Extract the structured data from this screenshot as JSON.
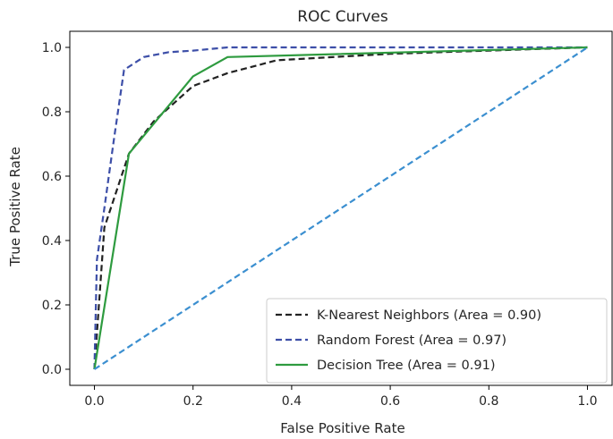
{
  "chart_data": {
    "type": "line",
    "title": "ROC Curves",
    "xlabel": "False Positive Rate",
    "ylabel": "True Positive Rate",
    "xlim": [
      -0.05,
      1.05
    ],
    "ylim": [
      -0.05,
      1.05
    ],
    "xticks": [
      0.0,
      0.2,
      0.4,
      0.6,
      0.8,
      1.0
    ],
    "yticks": [
      0.0,
      0.2,
      0.4,
      0.6,
      0.8,
      1.0
    ],
    "xtick_labels": [
      "0.0",
      "0.2",
      "0.4",
      "0.6",
      "0.8",
      "1.0"
    ],
    "ytick_labels": [
      "0.0",
      "0.2",
      "0.4",
      "0.6",
      "0.8",
      "1.0"
    ],
    "grid": false,
    "legend_position": "lower-right",
    "series": [
      {
        "name": "K-Nearest Neighbors (Area = 0.90)",
        "color": "#222222",
        "dash": "dashed",
        "points": [
          [
            0.0,
            0.0
          ],
          [
            0.02,
            0.44
          ],
          [
            0.07,
            0.67
          ],
          [
            0.12,
            0.77
          ],
          [
            0.2,
            0.88
          ],
          [
            0.27,
            0.92
          ],
          [
            0.37,
            0.96
          ],
          [
            0.6,
            0.98
          ],
          [
            1.0,
            1.0
          ]
        ]
      },
      {
        "name": "Random Forest (Area = 0.97)",
        "color": "#3d4fa8",
        "dash": "dashed",
        "points": [
          [
            0.0,
            0.0
          ],
          [
            0.005,
            0.34
          ],
          [
            0.02,
            0.5
          ],
          [
            0.04,
            0.72
          ],
          [
            0.06,
            0.93
          ],
          [
            0.1,
            0.97
          ],
          [
            0.15,
            0.985
          ],
          [
            0.2,
            0.99
          ],
          [
            0.27,
            1.0
          ],
          [
            1.0,
            1.0
          ]
        ]
      },
      {
        "name": "Decision Tree (Area = 0.91)",
        "color": "#2e9b3f",
        "dash": "solid",
        "points": [
          [
            0.0,
            0.0
          ],
          [
            0.07,
            0.67
          ],
          [
            0.2,
            0.91
          ],
          [
            0.27,
            0.97
          ],
          [
            1.0,
            1.0
          ]
        ]
      },
      {
        "name": "",
        "color": "#3b8fd0",
        "dash": "dashed",
        "points": [
          [
            0.0,
            0.0
          ],
          [
            1.0,
            1.0
          ]
        ]
      }
    ]
  }
}
